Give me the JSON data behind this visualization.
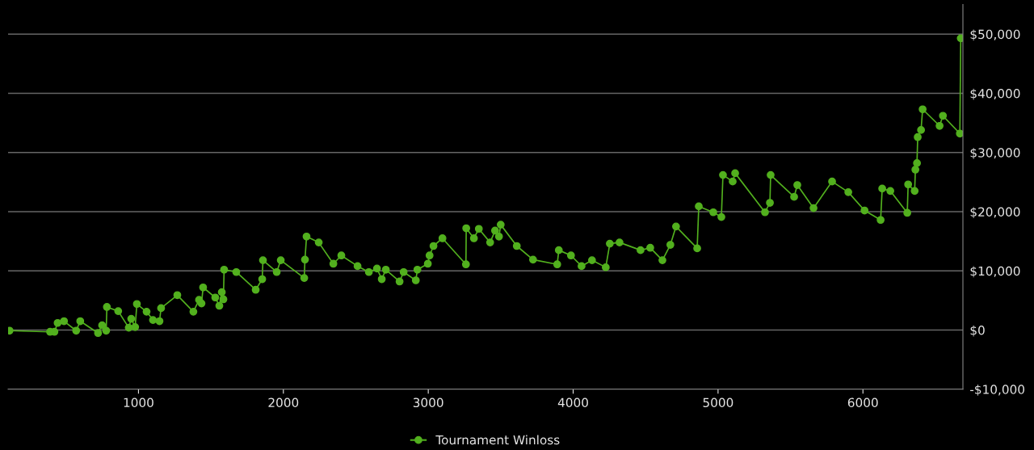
{
  "chart_data": {
    "type": "line",
    "x": [
      110,
      390,
      420,
      442,
      486,
      570,
      598,
      721,
      749,
      777,
      782,
      860,
      933,
      950,
      977,
      989,
      1056,
      1100,
      1145,
      1156,
      1268,
      1379,
      1418,
      1435,
      1446,
      1530,
      1558,
      1575,
      1586,
      1591,
      1675,
      1809,
      1854,
      1859,
      1954,
      1982,
      2144,
      2149,
      2160,
      2244,
      2345,
      2400,
      2512,
      2590,
      2646,
      2679,
      2707,
      2802,
      2830,
      2914,
      2925,
      2997,
      3009,
      3036,
      3098,
      3260,
      3262,
      3315,
      3349,
      3427,
      3461,
      3488,
      3500,
      3611,
      3723,
      3890,
      3901,
      3985,
      4058,
      4130,
      4225,
      4253,
      4320,
      4465,
      4532,
      4616,
      4671,
      4710,
      4856,
      4867,
      4967,
      5023,
      5034,
      5101,
      5118,
      5324,
      5358,
      5363,
      5525,
      5547,
      5659,
      5787,
      5899,
      6011,
      6122,
      6133,
      6189,
      6306,
      6312,
      6357,
      6362,
      6373,
      6378,
      6401,
      6412,
      6529,
      6552,
      6669,
      6675
    ],
    "series": [
      {
        "name": "Tournament Winloss",
        "color": "#52b01e",
        "values": [
          -100,
          -300,
          -300,
          1200,
          1500,
          -100,
          1500,
          -500,
          800,
          -100,
          3900,
          3200,
          400,
          1900,
          500,
          4400,
          3100,
          1700,
          1500,
          3700,
          5900,
          3100,
          5100,
          4500,
          7200,
          5500,
          4100,
          6400,
          5200,
          10200,
          9800,
          6800,
          8600,
          11800,
          9800,
          11800,
          8800,
          11900,
          15800,
          14800,
          11200,
          12600,
          10800,
          9800,
          10400,
          8600,
          10200,
          8200,
          9800,
          8400,
          10200,
          11200,
          12600,
          14200,
          15500,
          11100,
          17200,
          15500,
          17100,
          14800,
          16800,
          15800,
          17800,
          14200,
          11900,
          11100,
          13500,
          12600,
          10800,
          11800,
          10600,
          14600,
          14800,
          13500,
          13900,
          11800,
          14400,
          17500,
          13800,
          20900,
          19900,
          19100,
          26200,
          25100,
          26500,
          19900,
          21500,
          26200,
          22500,
          24500,
          20600,
          25100,
          23300,
          20200,
          18600,
          23900,
          23500,
          19800,
          24600,
          23500,
          27100,
          28200,
          32600,
          33800,
          37300,
          34500,
          36200,
          33200,
          49300
        ]
      }
    ],
    "xlim": [
      100,
      6690
    ],
    "xticks": [
      1000,
      2000,
      3000,
      4000,
      5000,
      6000
    ],
    "ylim": [
      -10000,
      55000
    ],
    "yticks": [
      {
        "value": -10000,
        "label": "-$10,000"
      },
      {
        "value": 0,
        "label": "$0"
      },
      {
        "value": 10000,
        "label": "$10,000"
      },
      {
        "value": 20000,
        "label": "$20,000"
      },
      {
        "value": 30000,
        "label": "$30,000"
      },
      {
        "value": 40000,
        "label": "$40,000"
      },
      {
        "value": 50000,
        "label": "$50,000"
      }
    ],
    "grid": "y",
    "legend": "bottom",
    "marker": "circle",
    "line_style": "solid"
  }
}
